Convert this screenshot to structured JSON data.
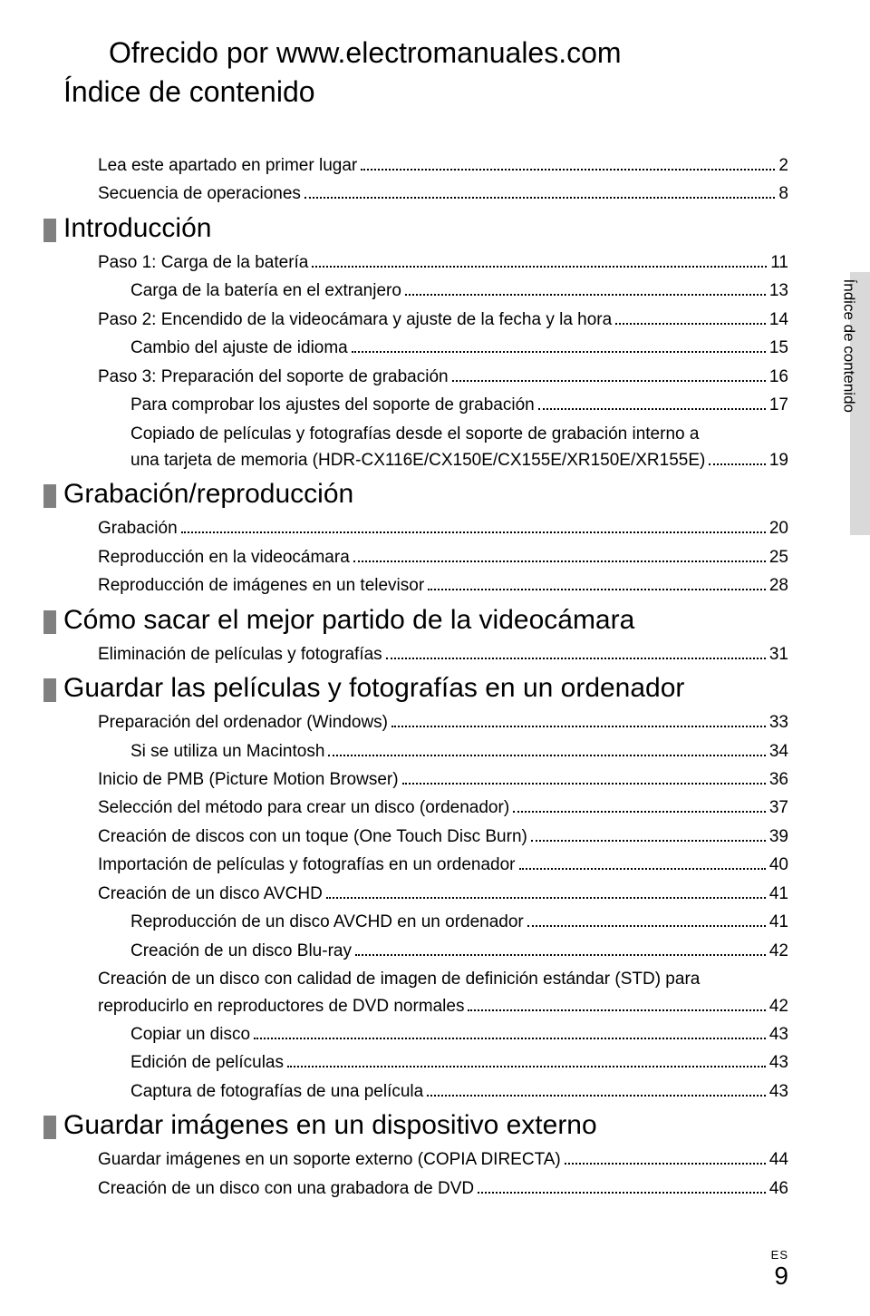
{
  "header_link": "Ofrecido por www.electromanuales.com",
  "page_title": "Índice de contenido",
  "side_tab": "Índice de contenido",
  "footer": {
    "lang": "ES",
    "page": "9"
  },
  "rows": [
    {
      "type": "row",
      "indent": 0,
      "label": "Lea este apartado en primer lugar",
      "page": "2"
    },
    {
      "type": "row",
      "indent": 0,
      "label": "Secuencia de operaciones",
      "page": "8"
    },
    {
      "type": "section",
      "label": "Introducción"
    },
    {
      "type": "row",
      "indent": 0,
      "label": "Paso 1: Carga de la batería",
      "page": "11"
    },
    {
      "type": "row",
      "indent": 1,
      "label": "Carga de la batería en el extranjero",
      "page": "13"
    },
    {
      "type": "row",
      "indent": 0,
      "label": "Paso 2: Encendido de la videocámara y ajuste de la fecha y la hora",
      "page": "14"
    },
    {
      "type": "row",
      "indent": 1,
      "label": "Cambio del ajuste de idioma",
      "page": "15"
    },
    {
      "type": "row",
      "indent": 0,
      "label": "Paso 3: Preparación del soporte de grabación",
      "page": "16"
    },
    {
      "type": "row",
      "indent": 1,
      "label": "Para comprobar los ajustes del soporte de grabación",
      "page": "17"
    },
    {
      "type": "multi",
      "indent": 1,
      "line1": "Copiado de películas y fotografías desde el soporte de grabación interno a",
      "line2": "una tarjeta de memoria (HDR-CX116E/CX150E/CX155E/XR150E/XR155E)",
      "page": "19"
    },
    {
      "type": "section",
      "label": "Grabación/reproducción"
    },
    {
      "type": "row",
      "indent": 0,
      "label": "Grabación",
      "page": "20"
    },
    {
      "type": "row",
      "indent": 0,
      "label": "Reproducción en la videocámara",
      "page": "25"
    },
    {
      "type": "row",
      "indent": 0,
      "label": "Reproducción de imágenes en un televisor",
      "page": "28"
    },
    {
      "type": "section",
      "label": "Cómo sacar el mejor partido de la videocámara"
    },
    {
      "type": "row",
      "indent": 0,
      "label": "Eliminación de películas y fotografías",
      "page": "31"
    },
    {
      "type": "section",
      "label": "Guardar las películas y fotografías en un ordenador"
    },
    {
      "type": "row",
      "indent": 0,
      "label": "Preparación del ordenador (Windows)",
      "page": "33"
    },
    {
      "type": "row",
      "indent": 1,
      "label": "Si se utiliza un Macintosh",
      "page": "34"
    },
    {
      "type": "row",
      "indent": 0,
      "label": "Inicio de PMB (Picture Motion Browser)",
      "page": "36"
    },
    {
      "type": "row",
      "indent": 0,
      "label": "Selección del método para crear un disco (ordenador)",
      "page": "37"
    },
    {
      "type": "row",
      "indent": 0,
      "label": "Creación de discos con un toque (One Touch Disc Burn)",
      "page": "39"
    },
    {
      "type": "row",
      "indent": 0,
      "label": "Importación de películas y fotografías en un ordenador",
      "page": "40"
    },
    {
      "type": "row",
      "indent": 0,
      "label": "Creación de un disco AVCHD",
      "page": "41"
    },
    {
      "type": "row",
      "indent": 1,
      "label": "Reproducción de un disco AVCHD en un ordenador",
      "page": "41"
    },
    {
      "type": "row",
      "indent": 1,
      "label": "Creación de un disco Blu-ray",
      "page": "42"
    },
    {
      "type": "multi2",
      "indent": 0,
      "line1": "Creación de un disco con calidad de imagen de definición estándar (STD) para",
      "line2": "reproducirlo en reproductores de DVD normales",
      "page": "42"
    },
    {
      "type": "row",
      "indent": 1,
      "label": "Copiar un disco",
      "page": "43"
    },
    {
      "type": "row",
      "indent": 1,
      "label": "Edición de películas",
      "page": "43"
    },
    {
      "type": "row",
      "indent": 1,
      "label": "Captura de fotografías de una película",
      "page": "43"
    },
    {
      "type": "section",
      "label": "Guardar imágenes en un dispositivo externo"
    },
    {
      "type": "row",
      "indent": 0,
      "label": "Guardar imágenes en un soporte externo (COPIA DIRECTA)",
      "page": "44"
    },
    {
      "type": "row",
      "indent": 0,
      "label": "Creación de un disco con una grabadora de DVD",
      "page": "46"
    }
  ]
}
